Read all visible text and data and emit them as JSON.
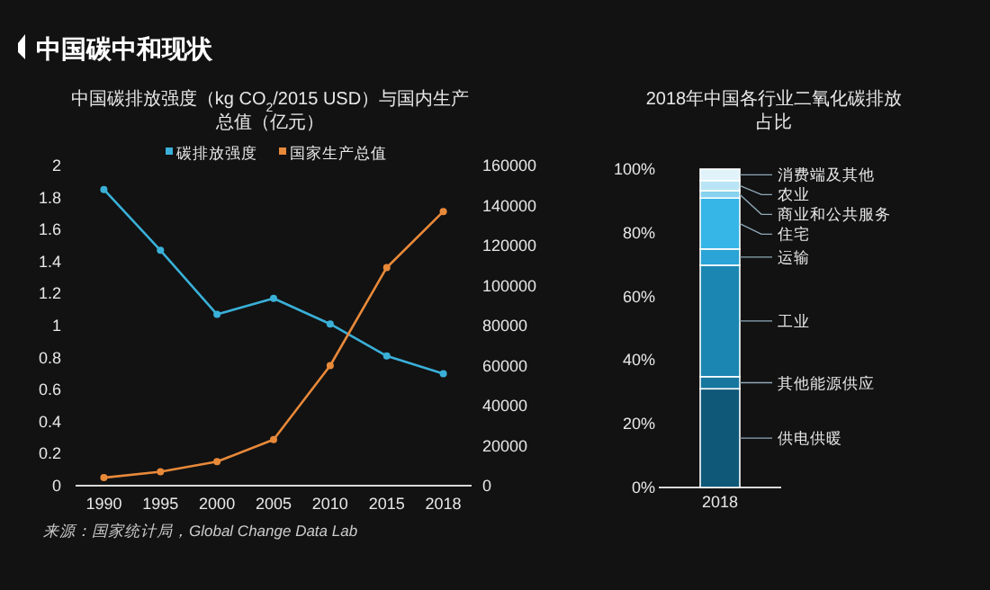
{
  "chart_data": [
    {
      "type": "line",
      "title": "中国碳排放强度（kg CO$_{2}$/2015 USD）与国内生产总值（亿元）",
      "annotations": [
        "中国碳中和现状",
        "来源：国家统计局，Global Change Data Lab"
      ],
      "categories": [
        "1990",
        "1995",
        "2000",
        "2005",
        "2010",
        "2015",
        "2018"
      ],
      "series": [
        {
          "name": "碳排放强度",
          "color": "#3ab0d8",
          "values": [
            1.85,
            1.47,
            1.07,
            1.17,
            1.01,
            0.81,
            0.7
          ]
        },
        {
          "name": "国家生产总值",
          "color": "#e8893a",
          "axis": "y2",
          "values": [
            4000,
            7000,
            12000,
            23000,
            60000,
            109000,
            137000
          ]
        }
      ],
      "ylim": [
        0,
        2
      ],
      "yticks": [
        0,
        0.2,
        0.4,
        0.6,
        0.8,
        1,
        1.2,
        1.4,
        1.6,
        1.8,
        2
      ],
      "y2lim": [
        0,
        160000
      ],
      "y2ticks": [
        0,
        20000,
        40000,
        60000,
        80000,
        100000,
        120000,
        140000,
        160000
      ],
      "legend": "top",
      "marker": "circle",
      "grid": false
    },
    {
      "type": "bar",
      "stacked": true,
      "title": "2018年中国各行业二氧化碳排放占比",
      "categories": [
        "2018"
      ],
      "series": [
        {
          "name": "供电供暖",
          "color": "#0f5878",
          "values": [
            31
          ]
        },
        {
          "name": "其他能源供应",
          "color": "#17779f",
          "values": [
            3.8
          ]
        },
        {
          "name": "工业",
          "color": "#1c86b2",
          "values": [
            35
          ]
        },
        {
          "name": "运输",
          "color": "#2aa3d6",
          "values": [
            5.1
          ]
        },
        {
          "name": "住宅",
          "color": "#36b6e6",
          "values": [
            16
          ]
        },
        {
          "name": "商业和公共服务",
          "color": "#86d2ef",
          "values": [
            2.3
          ]
        },
        {
          "name": "农业",
          "color": "#b8e4f5",
          "values": [
            3.2
          ]
        },
        {
          "name": "消费端及其他",
          "color": "#e0f3fb",
          "values": [
            3.6
          ]
        }
      ],
      "ylim": [
        0,
        100
      ],
      "yticks": [
        {
          "value": 0,
          "label": "0%"
        },
        {
          "value": 20,
          "label": "20%"
        },
        {
          "value": 40,
          "label": "40%"
        },
        {
          "value": 60,
          "label": "60%"
        },
        {
          "value": 80,
          "label": "80%"
        },
        {
          "value": 100,
          "label": "100%"
        }
      ],
      "legend": false
    }
  ]
}
